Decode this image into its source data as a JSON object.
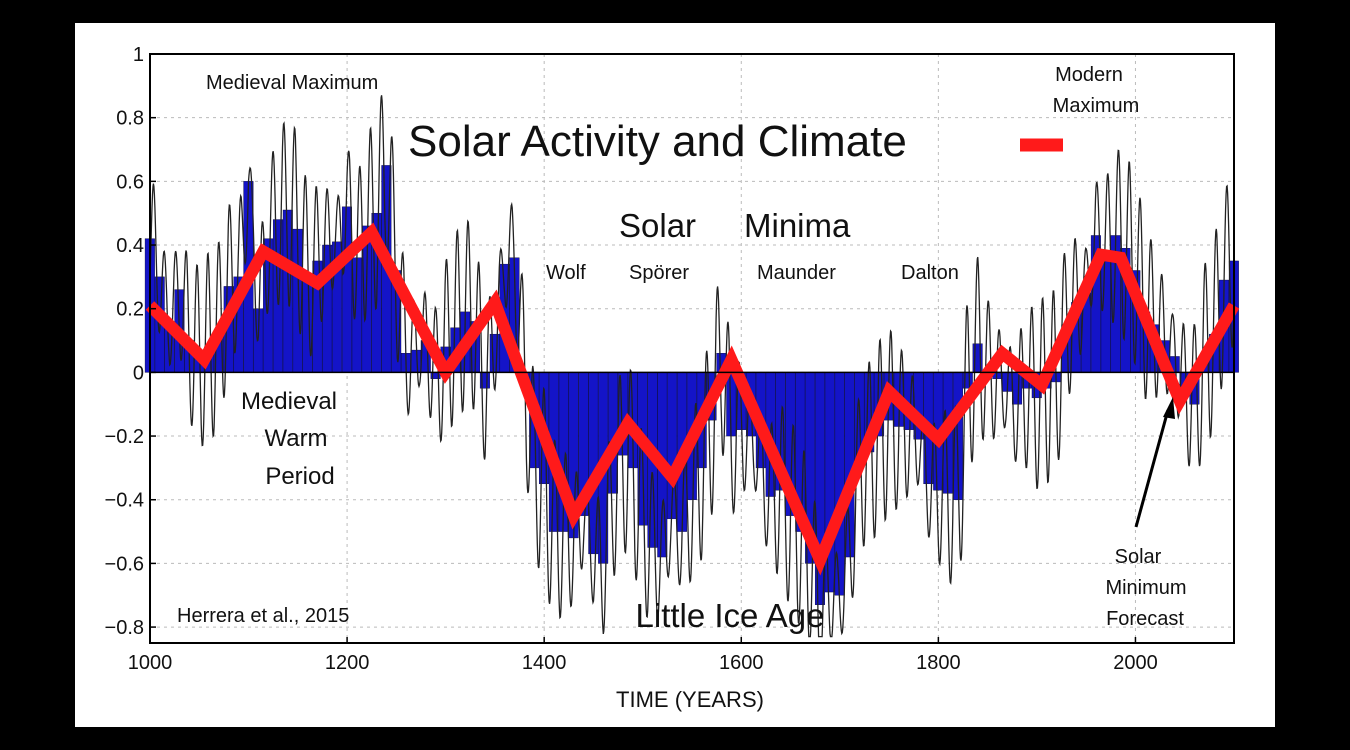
{
  "chart_data": {
    "type": "bar",
    "title": "Solar Activity and Climate",
    "xlabel": "TIME (YEARS)",
    "ylabel": "",
    "xlim": [
      1000,
      2100
    ],
    "ylim": [
      -0.85,
      1.0
    ],
    "grid": true,
    "x_ticks": [
      "1000",
      "1200",
      "1400",
      "1600",
      "1800",
      "2000"
    ],
    "y_ticks": [
      "1",
      "0.8",
      "0.6",
      "0.4",
      "0.2",
      "0",
      "−0.2",
      "−0.4",
      "−0.6",
      "−0.8"
    ],
    "legend": "top-center",
    "colors": {
      "bars": "#1414c8",
      "climate_line": "#ff1a1a",
      "oscillation": "#222222",
      "grid": "#bbbbbb"
    },
    "series": [
      {
        "type": "bar",
        "x": [
          1000,
          1010,
          1020,
          1030,
          1040,
          1050,
          1060,
          1070,
          1080,
          1090,
          1100,
          1110,
          1120,
          1130,
          1140,
          1150,
          1160,
          1170,
          1180,
          1190,
          1200,
          1210,
          1220,
          1230,
          1240,
          1250,
          1260,
          1270,
          1280,
          1290,
          1300,
          1310,
          1320,
          1330,
          1340,
          1350,
          1360,
          1370,
          1380,
          1390,
          1400,
          1410,
          1420,
          1430,
          1440,
          1450,
          1460,
          1470,
          1480,
          1490,
          1500,
          1510,
          1520,
          1530,
          1540,
          1550,
          1560,
          1570,
          1580,
          1590,
          1600,
          1610,
          1620,
          1630,
          1640,
          1650,
          1660,
          1670,
          1680,
          1690,
          1700,
          1710,
          1720,
          1730,
          1740,
          1750,
          1760,
          1770,
          1780,
          1790,
          1800,
          1810,
          1820,
          1830,
          1840,
          1850,
          1860,
          1870,
          1880,
          1890,
          1900,
          1910,
          1920,
          1930,
          1940,
          1950,
          1960,
          1970,
          1980,
          1990,
          2000,
          2010,
          2020,
          2030,
          2040,
          2050,
          2060,
          2070,
          2080,
          2090,
          2100
        ],
        "values": [
          0.42,
          0.3,
          0.15,
          0.26,
          0.1,
          0.05,
          0.08,
          0.12,
          0.27,
          0.3,
          0.6,
          0.2,
          0.42,
          0.48,
          0.51,
          0.45,
          0.3,
          0.35,
          0.4,
          0.41,
          0.52,
          0.36,
          0.46,
          0.5,
          0.65,
          0.32,
          0.06,
          0.07,
          0.1,
          -0.02,
          0.08,
          0.14,
          0.19,
          0.16,
          -0.05,
          0.12,
          0.34,
          0.36,
          -0.02,
          -0.3,
          -0.35,
          -0.5,
          -0.5,
          -0.52,
          -0.45,
          -0.57,
          -0.6,
          -0.38,
          -0.26,
          -0.3,
          -0.48,
          -0.55,
          -0.58,
          -0.46,
          -0.5,
          -0.4,
          -0.3,
          -0.15,
          0.06,
          -0.2,
          -0.18,
          -0.2,
          -0.3,
          -0.39,
          -0.37,
          -0.45,
          -0.5,
          -0.6,
          -0.73,
          -0.69,
          -0.7,
          -0.58,
          -0.3,
          -0.25,
          -0.2,
          -0.15,
          -0.17,
          -0.18,
          -0.21,
          -0.35,
          -0.37,
          -0.38,
          -0.4,
          -0.05,
          0.09,
          0.0,
          -0.02,
          -0.06,
          -0.1,
          -0.05,
          -0.08,
          -0.05,
          -0.03,
          0.15,
          0.22,
          0.25,
          0.43,
          0.38,
          0.43,
          0.39,
          0.32,
          0.19,
          0.15,
          0.1,
          0.05,
          -0.05,
          -0.1,
          0.05,
          0.12,
          0.29,
          0.35
        ]
      },
      {
        "name": "Solar Activity and Climate",
        "type": "line",
        "x": [
          1000,
          1055,
          1115,
          1170,
          1225,
          1300,
          1350,
          1430,
          1485,
          1530,
          1590,
          1680,
          1750,
          1800,
          1865,
          1905,
          1965,
          1985,
          2045,
          2100
        ],
        "values": [
          0.21,
          0.04,
          0.38,
          0.28,
          0.44,
          0.0,
          0.22,
          -0.45,
          -0.16,
          -0.33,
          0.04,
          -0.59,
          -0.06,
          -0.21,
          0.06,
          -0.04,
          0.37,
          0.36,
          -0.09,
          0.21
        ]
      }
    ],
    "annotations": {
      "medieval_maximum": "Medieval Maximum",
      "modern_maximum_1": "Modern",
      "modern_maximum_2": "Maximum",
      "solar_minima_1": "Solar",
      "solar_minima_2": "Minima",
      "wolf": "Wolf",
      "sporer": "Spörer",
      "maunder": "Maunder",
      "dalton": "Dalton",
      "medieval_warm_1": "Medieval",
      "medieval_warm_2": "Warm",
      "medieval_warm_3": "Period",
      "little_ice_age": "Little Ice Age",
      "forecast_1": "Solar",
      "forecast_2": "Minimum",
      "forecast_3": "Forecast",
      "source": "Herrera et al., 2015"
    }
  }
}
